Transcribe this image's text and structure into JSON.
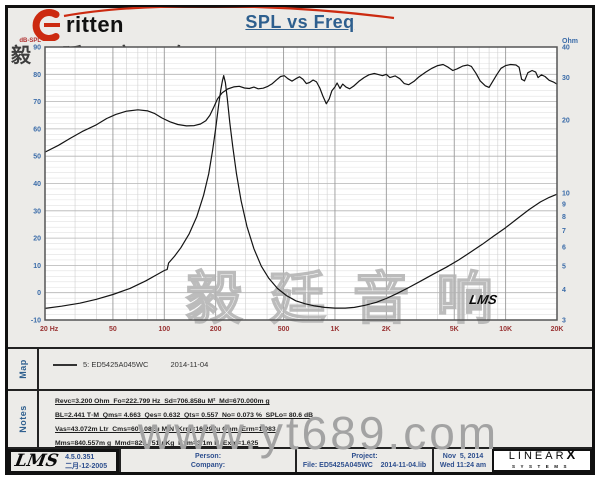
{
  "header": {
    "brand_latin": "ritten",
    "brand_cn": "毅 廷 音 响",
    "title": "SPL vs Freq"
  },
  "chart_data": {
    "type": "line",
    "title": "SPL vs Freq",
    "grid": true,
    "x_axis": {
      "scale": "log",
      "min": 20,
      "max": 20000,
      "ticks": [
        [
          20,
          "20 Hz"
        ],
        [
          50,
          "50"
        ],
        [
          100,
          "100"
        ],
        [
          200,
          "200"
        ],
        [
          500,
          "500"
        ],
        [
          1000,
          "1K"
        ],
        [
          2000,
          "2K"
        ],
        [
          5000,
          "5K"
        ],
        [
          10000,
          "10K"
        ],
        [
          20000,
          "20K"
        ]
      ]
    },
    "y_left": {
      "label": "dB-SPL",
      "scale": "linear",
      "min": -10,
      "max": 90,
      "tick_step": 10,
      "ticks": [
        90,
        80,
        70,
        60,
        50,
        40,
        30,
        20,
        10,
        0,
        -10
      ]
    },
    "y_right": {
      "label": "Ohm",
      "scale": "log",
      "min": 3,
      "max": 40,
      "ticks": [
        40,
        30,
        20,
        10,
        9,
        8,
        7,
        6,
        5,
        4,
        3
      ]
    },
    "series": [
      {
        "name": "SPL",
        "axis": "left",
        "points": [
          [
            20,
            51.5
          ],
          [
            24,
            54
          ],
          [
            28,
            56.5
          ],
          [
            33,
            59
          ],
          [
            40,
            61.5
          ],
          [
            46,
            63.8
          ],
          [
            52,
            65.3
          ],
          [
            60,
            66.5
          ],
          [
            70,
            67
          ],
          [
            80,
            66.6
          ],
          [
            88,
            65.6
          ],
          [
            97,
            64
          ],
          [
            108,
            62.6
          ],
          [
            120,
            61.6
          ],
          [
            135,
            61.1
          ],
          [
            150,
            61.2
          ],
          [
            163,
            61.8
          ],
          [
            175,
            63
          ],
          [
            185,
            65
          ],
          [
            195,
            68
          ],
          [
            205,
            71
          ],
          [
            218,
            73.2
          ],
          [
            235,
            74.6
          ],
          [
            255,
            75.4
          ],
          [
            275,
            75.6
          ],
          [
            295,
            75
          ],
          [
            315,
            74.8
          ],
          [
            335,
            75.3
          ],
          [
            355,
            74.7
          ],
          [
            380,
            74.9
          ],
          [
            405,
            75.6
          ],
          [
            430,
            76.6
          ],
          [
            455,
            78
          ],
          [
            480,
            79.2
          ],
          [
            505,
            79.5
          ],
          [
            530,
            78.4
          ],
          [
            560,
            77.5
          ],
          [
            590,
            78.4
          ],
          [
            620,
            79.1
          ],
          [
            650,
            78.2
          ],
          [
            680,
            76.6
          ],
          [
            710,
            77
          ],
          [
            745,
            77.9
          ],
          [
            780,
            77.2
          ],
          [
            815,
            75
          ],
          [
            850,
            72
          ],
          [
            890,
            69.2
          ],
          [
            925,
            71
          ],
          [
            960,
            74
          ],
          [
            1000,
            75.4
          ],
          [
            1030,
            76.8
          ],
          [
            1070,
            74.8
          ],
          [
            1110,
            76.4
          ],
          [
            1160,
            75.3
          ],
          [
            1220,
            74.7
          ],
          [
            1290,
            75.7
          ],
          [
            1380,
            77.4
          ],
          [
            1480,
            78.8
          ],
          [
            1580,
            79.8
          ],
          [
            1700,
            80.3
          ],
          [
            1800,
            79.9
          ],
          [
            1900,
            79.5
          ],
          [
            2000,
            80
          ],
          [
            2100,
            78.8
          ],
          [
            2250,
            79.4
          ],
          [
            2400,
            78.4
          ],
          [
            2550,
            76.6
          ],
          [
            2700,
            76.2
          ],
          [
            2900,
            77.4
          ],
          [
            3100,
            79
          ],
          [
            3400,
            80.8
          ],
          [
            3700,
            82.2
          ],
          [
            4000,
            83.2
          ],
          [
            4300,
            83.6
          ],
          [
            4600,
            82.6
          ],
          [
            4900,
            81.4
          ],
          [
            5200,
            82
          ],
          [
            5600,
            83
          ],
          [
            6000,
            83.4
          ],
          [
            6300,
            82.9
          ],
          [
            6700,
            80.4
          ],
          [
            7100,
            77.6
          ],
          [
            7600,
            75.8
          ],
          [
            8000,
            75.2
          ],
          [
            8400,
            77.4
          ],
          [
            8900,
            80
          ],
          [
            9400,
            82.2
          ],
          [
            10000,
            83.2
          ],
          [
            10700,
            83.6
          ],
          [
            11500,
            83.4
          ],
          [
            12000,
            82.6
          ],
          [
            12400,
            78.2
          ],
          [
            12900,
            77.6
          ],
          [
            13500,
            80.6
          ],
          [
            14300,
            81.4
          ],
          [
            15000,
            80.8
          ],
          [
            15500,
            78.8
          ],
          [
            16200,
            79.8
          ],
          [
            17000,
            79.2
          ],
          [
            18000,
            77.8
          ],
          [
            19000,
            77.2
          ],
          [
            20000,
            76.4
          ]
        ]
      },
      {
        "name": "Impedance",
        "axis": "right",
        "points": [
          [
            20,
            3.35
          ],
          [
            25,
            3.42
          ],
          [
            32,
            3.52
          ],
          [
            40,
            3.65
          ],
          [
            50,
            3.82
          ],
          [
            63,
            4.05
          ],
          [
            78,
            4.35
          ],
          [
            90,
            4.6
          ],
          [
            100,
            4.8
          ],
          [
            104,
            4.85
          ],
          [
            106,
            5.15
          ],
          [
            115,
            5.5
          ],
          [
            125,
            5.95
          ],
          [
            140,
            6.8
          ],
          [
            155,
            8
          ],
          [
            170,
            9.8
          ],
          [
            182,
            12
          ],
          [
            192,
            15
          ],
          [
            200,
            18.5
          ],
          [
            208,
            23
          ],
          [
            214,
            26.5
          ],
          [
            219,
            29
          ],
          [
            223,
            30.5
          ],
          [
            228,
            28.5
          ],
          [
            234,
            24.5
          ],
          [
            242,
            19.5
          ],
          [
            252,
            15.5
          ],
          [
            265,
            12
          ],
          [
            282,
            9.3
          ],
          [
            305,
            7.3
          ],
          [
            335,
            5.9
          ],
          [
            370,
            5
          ],
          [
            410,
            4.45
          ],
          [
            460,
            4.05
          ],
          [
            520,
            3.78
          ],
          [
            590,
            3.6
          ],
          [
            670,
            3.5
          ],
          [
            760,
            3.43
          ],
          [
            870,
            3.38
          ],
          [
            1000,
            3.36
          ],
          [
            1150,
            3.36
          ],
          [
            1300,
            3.38
          ],
          [
            1500,
            3.45
          ],
          [
            1750,
            3.55
          ],
          [
            2000,
            3.68
          ],
          [
            2300,
            3.85
          ],
          [
            2700,
            4.08
          ],
          [
            3200,
            4.35
          ],
          [
            3800,
            4.65
          ],
          [
            4500,
            4.95
          ],
          [
            5300,
            5.3
          ],
          [
            6200,
            5.7
          ],
          [
            7300,
            6.15
          ],
          [
            8500,
            6.65
          ],
          [
            10000,
            7.2
          ],
          [
            11700,
            7.85
          ],
          [
            13700,
            8.55
          ],
          [
            16000,
            9.2
          ],
          [
            18000,
            9.6
          ],
          [
            20000,
            9.9
          ]
        ]
      }
    ],
    "annotations": [
      "LMS"
    ]
  },
  "map": {
    "label": "Map",
    "legend": "5: ED5425A045WC",
    "legend_date": "2014-11-04"
  },
  "notes": {
    "label": "Notes",
    "lines": [
      "Revc=3.200 Ohm  Fo=222.799 Hz  Sd=706.858u M²  Md=670.000m g",
      "BL=2.441 T·M  Qms= 4.663  Qes= 0.632  Qts= 0.557  No= 0.073 %  SPLo= 80.6 dB",
      "Vas=43.072m Ltr  Cms=607.082u M/N  Krm=16.297u Ohm  Erm=1.083",
      "Mms=840.557m g  Mmd=829.751u Kg  Kxm=3.1m H  Exm=1.625"
    ]
  },
  "footer": {
    "lms_logo": "LMS",
    "version": "4.5.0.351",
    "version_date": "二月-12-2005",
    "person_label": "Person:",
    "company_label": "Company:",
    "project_label": "Project:",
    "file_line": "File: ED5425A045WC    2014-11-04.lib",
    "date_line1": "Nov  5, 2014",
    "date_line2": "Wed 11:24 am",
    "linearx_main": "LINEAR",
    "linearx_x": "X",
    "linearx_sub": "SYSTEMS"
  },
  "watermarks": {
    "center_cn": "毅 廷 音 响",
    "url": "www.yt689.com",
    "plot_logo": "LMS"
  },
  "colors": {
    "title_blue": "#2e5f8e",
    "axis_blue": "#3a6ba8",
    "freq_red": "#993333",
    "curve": "#141414",
    "watermark_gray": "#b5b5b5",
    "brand_red": "#cc2a10"
  }
}
